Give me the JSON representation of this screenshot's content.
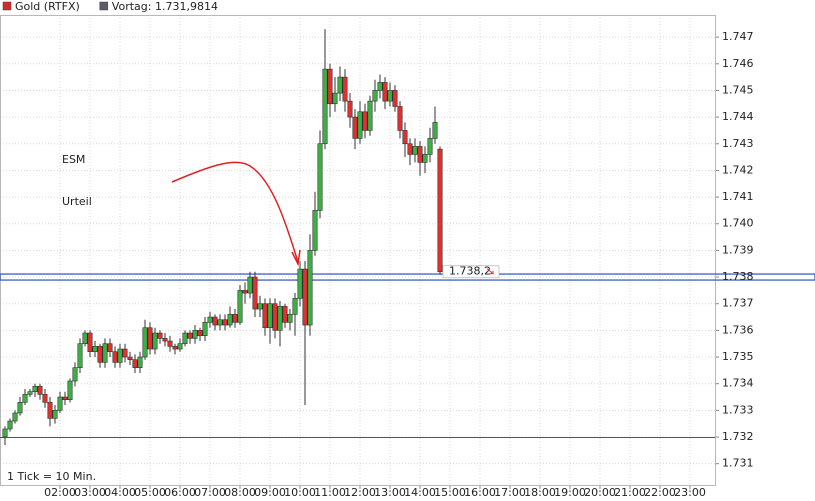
{
  "chart_data": {
    "type": "candlestick",
    "legend": [
      {
        "name": "Gold (RTFX)",
        "color": "#d42a2a"
      },
      {
        "name": "Vortag: 1.731,9814",
        "color": "#5a5a6e"
      }
    ],
    "previous_close": 1731.9814,
    "horizontal_line": {
      "value": 1738.0,
      "color": "#3b5fc4"
    },
    "annotation": [
      "ESM",
      "Urteil"
    ],
    "annotation_color": "#e02020",
    "footnote": "1 Tick = 10 Min.",
    "last_price": {
      "value": 1738.2,
      "label": "1.738,2"
    },
    "up_color": "#3cb043",
    "down_color": "#e03030",
    "x": [
      10,
      20,
      30,
      40,
      50,
      60,
      70,
      80,
      90,
      100,
      110,
      120,
      130,
      140,
      150,
      160,
      170,
      180,
      190,
      200,
      210,
      220,
      230,
      240,
      250,
      260,
      270,
      280,
      290,
      300,
      310,
      320,
      330,
      340,
      350,
      360,
      370,
      380,
      390,
      400,
      410,
      420,
      430,
      440,
      450,
      460,
      470,
      480,
      490,
      500,
      510,
      520,
      530,
      540,
      550,
      560,
      570,
      580,
      590,
      600,
      610,
      620,
      630,
      640,
      650,
      660,
      670,
      680,
      690,
      700,
      710,
      720,
      730,
      740,
      750,
      760,
      770,
      780,
      790,
      800,
      810,
      820,
      830,
      840,
      850,
      860,
      870,
      880
    ],
    "open": [
      1732.0,
      1732.3,
      1732.6,
      1732.9,
      1733.3,
      1733.6,
      1733.7,
      1733.9,
      1733.6,
      1733.3,
      1732.7,
      1733.0,
      1733.5,
      1733.4,
      1734.1,
      1734.6,
      1735.5,
      1735.9,
      1735.2,
      1735.4,
      1734.8,
      1735.5,
      1735.2,
      1734.8,
      1735.3,
      1735.0,
      1734.9,
      1734.6,
      1735.0,
      1736.1,
      1735.3,
      1735.9,
      1735.7,
      1735.6,
      1735.4,
      1735.3,
      1735.5,
      1735.9,
      1735.7,
      1736.0,
      1735.8,
      1736.3,
      1736.5,
      1736.2,
      1736.4,
      1736.2,
      1736.6,
      1736.3,
      1737.5,
      1737.4,
      1738.0,
      1736.8,
      1737.0,
      1736.1,
      1737.0,
      1736.0,
      1736.9,
      1736.3,
      1736.6,
      1737.2,
      1738.3,
      1736.2,
      1739.0,
      1740.5,
      1743.0,
      1745.8,
      1744.5,
      1744.9,
      1745.5,
      1744.6,
      1744.0,
      1743.2,
      1744.2,
      1743.5,
      1744.6,
      1745.0,
      1745.3,
      1744.6,
      1745.0,
      1744.4,
      1743.5,
      1743.0,
      1742.6,
      1742.9,
      1742.3,
      1742.6,
      1743.2,
      1742.8
    ],
    "high": [
      1732.4,
      1732.7,
      1733.0,
      1733.5,
      1733.8,
      1733.8,
      1734.0,
      1734.0,
      1733.8,
      1733.5,
      1733.2,
      1733.7,
      1733.7,
      1734.2,
      1734.8,
      1735.7,
      1736.0,
      1736.0,
      1735.6,
      1735.5,
      1735.7,
      1735.7,
      1735.4,
      1735.5,
      1735.5,
      1735.2,
      1735.1,
      1735.2,
      1736.4,
      1736.3,
      1736.1,
      1736.0,
      1735.9,
      1735.8,
      1735.5,
      1735.7,
      1736.0,
      1736.0,
      1736.2,
      1736.1,
      1736.5,
      1736.7,
      1736.6,
      1736.6,
      1736.6,
      1736.9,
      1736.8,
      1737.7,
      1737.8,
      1738.2,
      1738.2,
      1737.3,
      1737.2,
      1737.2,
      1737.2,
      1737.1,
      1737.0,
      1736.8,
      1737.4,
      1738.6,
      1738.6,
      1739.6,
      1741.2,
      1743.5,
      1747.3,
      1746.0,
      1745.5,
      1745.9,
      1745.8,
      1744.9,
      1744.3,
      1744.6,
      1744.5,
      1744.8,
      1745.4,
      1745.6,
      1745.5,
      1745.3,
      1745.2,
      1744.6,
      1743.8,
      1743.2,
      1743.2,
      1743.1,
      1742.9,
      1743.6,
      1744.4,
      1742.9
    ],
    "low": [
      1731.7,
      1732.2,
      1732.5,
      1732.8,
      1733.2,
      1733.5,
      1733.5,
      1733.4,
      1733.1,
      1732.4,
      1732.5,
      1732.9,
      1733.2,
      1733.3,
      1733.9,
      1734.4,
      1735.4,
      1735.0,
      1735.0,
      1734.6,
      1734.6,
      1735.0,
      1734.6,
      1734.6,
      1734.8,
      1734.7,
      1734.4,
      1734.4,
      1734.9,
      1735.1,
      1735.1,
      1735.5,
      1735.4,
      1735.2,
      1735.1,
      1735.2,
      1735.4,
      1735.5,
      1735.5,
      1735.6,
      1735.6,
      1736.1,
      1736.0,
      1736.0,
      1736.0,
      1736.1,
      1736.1,
      1736.2,
      1737.0,
      1737.2,
      1736.5,
      1736.5,
      1735.8,
      1735.5,
      1735.7,
      1735.4,
      1736.1,
      1736.0,
      1735.8,
      1736.9,
      1733.2,
      1735.8,
      1738.8,
      1740.2,
      1742.8,
      1744.0,
      1744.2,
      1744.6,
      1744.2,
      1743.6,
      1742.8,
      1743.0,
      1743.2,
      1743.3,
      1744.2,
      1744.7,
      1744.3,
      1744.4,
      1744.2,
      1743.2,
      1742.5,
      1742.2,
      1742.3,
      1741.8,
      1741.9,
      1742.3,
      1743.0,
      1738.1
    ],
    "close": [
      1732.3,
      1732.6,
      1732.9,
      1733.3,
      1733.6,
      1733.7,
      1733.9,
      1733.6,
      1733.3,
      1732.7,
      1733.0,
      1733.5,
      1733.4,
      1734.1,
      1734.6,
      1735.5,
      1735.9,
      1735.2,
      1735.4,
      1734.8,
      1735.5,
      1735.2,
      1734.8,
      1735.3,
      1735.0,
      1734.9,
      1734.6,
      1735.0,
      1736.1,
      1735.3,
      1735.9,
      1735.7,
      1735.6,
      1735.4,
      1735.3,
      1735.5,
      1735.9,
      1735.7,
      1736.0,
      1735.8,
      1736.3,
      1736.5,
      1736.2,
      1736.4,
      1736.2,
      1736.6,
      1736.3,
      1737.5,
      1737.4,
      1738.0,
      1736.8,
      1737.0,
      1736.1,
      1737.0,
      1736.0,
      1736.9,
      1736.3,
      1736.6,
      1737.2,
      1738.3,
      1736.2,
      1739.0,
      1740.5,
      1743.0,
      1745.8,
      1744.5,
      1744.9,
      1745.5,
      1744.6,
      1744.0,
      1743.2,
      1744.2,
      1743.5,
      1744.6,
      1745.0,
      1745.3,
      1744.6,
      1745.0,
      1744.4,
      1743.5,
      1743.0,
      1742.6,
      1742.9,
      1742.3,
      1742.6,
      1743.2,
      1743.8,
      1738.2
    ],
    "xlim": [
      0,
      1430
    ],
    "xticks": [
      {
        "value": 120,
        "label": "02:00"
      },
      {
        "value": 180,
        "label": "03:00"
      },
      {
        "value": 240,
        "label": "04:00"
      },
      {
        "value": 300,
        "label": "05:00"
      },
      {
        "value": 360,
        "label": "06:00"
      },
      {
        "value": 420,
        "label": "07:00"
      },
      {
        "value": 480,
        "label": "08:00"
      },
      {
        "value": 540,
        "label": "09:00"
      },
      {
        "value": 600,
        "label": "10:00"
      },
      {
        "value": 660,
        "label": "11:00"
      },
      {
        "value": 720,
        "label": "12:00"
      },
      {
        "value": 780,
        "label": "13:00"
      },
      {
        "value": 840,
        "label": "14:00"
      },
      {
        "value": 900,
        "label": "15:00"
      },
      {
        "value": 960,
        "label": "16:00"
      },
      {
        "value": 1020,
        "label": "17:00"
      },
      {
        "value": 1080,
        "label": "18:00"
      },
      {
        "value": 1140,
        "label": "19:00"
      },
      {
        "value": 1200,
        "label": "20:00"
      },
      {
        "value": 1260,
        "label": "21:00"
      },
      {
        "value": 1320,
        "label": "22:00"
      },
      {
        "value": 1380,
        "label": "23:00"
      }
    ],
    "ylim": [
      1730.2,
      1747.83
    ],
    "yticks": [
      {
        "value": 1731,
        "label": "1.731"
      },
      {
        "value": 1732,
        "label": "1.732"
      },
      {
        "value": 1733,
        "label": "1.733"
      },
      {
        "value": 1734,
        "label": "1.734"
      },
      {
        "value": 1735,
        "label": "1.735"
      },
      {
        "value": 1736,
        "label": "1.736"
      },
      {
        "value": 1737,
        "label": "1.737"
      },
      {
        "value": 1738,
        "label": "1.738"
      },
      {
        "value": 1739,
        "label": "1.739"
      },
      {
        "value": 1740,
        "label": "1.740"
      },
      {
        "value": 1741,
        "label": "1.741"
      },
      {
        "value": 1742,
        "label": "1.742"
      },
      {
        "value": 1743,
        "label": "1.743"
      },
      {
        "value": 1744,
        "label": "1.744"
      },
      {
        "value": 1745,
        "label": "1.745"
      },
      {
        "value": 1746,
        "label": "1.746"
      },
      {
        "value": 1747,
        "label": "1.747"
      }
    ],
    "grid": true
  }
}
